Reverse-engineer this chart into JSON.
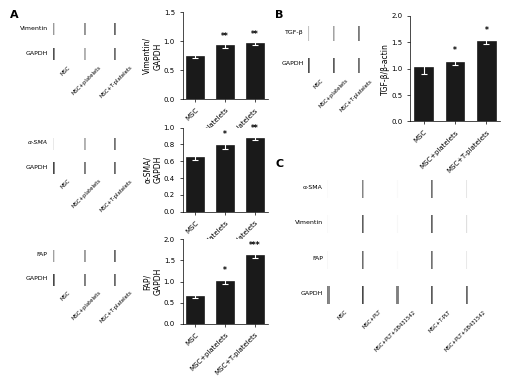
{
  "panel_A_bars": [
    {
      "title": "Vimentin/\nGAPDH",
      "categories": [
        "MSC",
        "MSC+platelets",
        "MSC+T-platelets"
      ],
      "values": [
        0.75,
        0.93,
        0.97
      ],
      "errors": [
        0.04,
        0.04,
        0.03
      ],
      "ylim": [
        0,
        1.5
      ],
      "yticks": [
        0.0,
        0.5,
        1.0,
        1.5
      ],
      "significance": [
        "",
        "**",
        "**"
      ]
    },
    {
      "title": "α-SMA/\nGAPDH",
      "categories": [
        "MSC",
        "MSC+platelets",
        "MSC+T-platelets"
      ],
      "values": [
        0.65,
        0.79,
        0.88
      ],
      "errors": [
        0.03,
        0.04,
        0.03
      ],
      "ylim": [
        0,
        1.0
      ],
      "yticks": [
        0.0,
        0.2,
        0.4,
        0.6,
        0.8,
        1.0
      ],
      "significance": [
        "",
        "*",
        "**"
      ]
    },
    {
      "title": "FAP/\nGAPDH",
      "categories": [
        "MSC",
        "MSC+platelets",
        "MSC+T-platelets"
      ],
      "values": [
        0.65,
        1.02,
        1.62
      ],
      "errors": [
        0.04,
        0.08,
        0.07
      ],
      "ylim": [
        0,
        2.0
      ],
      "yticks": [
        0.0,
        0.5,
        1.0,
        1.5,
        2.0
      ],
      "significance": [
        "",
        "*",
        "***"
      ]
    }
  ],
  "panel_A_blots": [
    {
      "rows": [
        {
          "label": "Vimentin",
          "intensities": [
            0.45,
            0.72,
            0.82
          ],
          "italic": false
        },
        {
          "label": "GAPDH",
          "intensities": [
            0.78,
            0.6,
            0.8
          ],
          "italic": false
        }
      ]
    },
    {
      "rows": [
        {
          "label": "α-SMA",
          "intensities": [
            0.1,
            0.6,
            0.78
          ],
          "italic": true
        },
        {
          "label": "GAPDH",
          "intensities": [
            0.82,
            0.82,
            0.82
          ],
          "italic": false
        }
      ]
    },
    {
      "rows": [
        {
          "label": "FAP",
          "intensities": [
            0.42,
            0.68,
            0.82
          ],
          "italic": false
        },
        {
          "label": "GAPDH",
          "intensities": [
            0.82,
            0.82,
            0.82
          ],
          "italic": false
        }
      ]
    }
  ],
  "blot_A_lanes": [
    "MSC",
    "MSC+platelets",
    "MSC+T-platelets"
  ],
  "panel_B": {
    "title": "TGF-β/β-actin",
    "categories": [
      "MSC",
      "MSC+platelets",
      "MSC+T-platelets"
    ],
    "values": [
      1.02,
      1.13,
      1.52
    ],
    "errors": [
      0.12,
      0.07,
      0.06
    ],
    "ylim": [
      0,
      2.0
    ],
    "yticks": [
      0.0,
      0.5,
      1.0,
      1.5,
      2.0
    ],
    "significance": [
      "",
      "*",
      "*"
    ],
    "blot_rows": [
      {
        "label": "TGF-β",
        "intensities": [
          0.3,
          0.5,
          0.78
        ]
      },
      {
        "label": "GAPDH",
        "intensities": [
          0.82,
          0.82,
          0.82
        ]
      }
    ],
    "blot_lanes": [
      "MSC",
      "MSC+platelets",
      "MSC+T-platelets"
    ]
  },
  "panel_C": {
    "blot_rows": [
      {
        "label": "α-SMA",
        "intensities": [
          0.18,
          0.55,
          0.22,
          0.72,
          0.25
        ]
      },
      {
        "label": "Vimentin",
        "intensities": [
          0.22,
          0.72,
          0.28,
          0.78,
          0.3
        ]
      },
      {
        "label": "FAP",
        "intensities": [
          0.28,
          0.65,
          0.22,
          0.72,
          0.22
        ]
      },
      {
        "label": "GAPDH",
        "intensities": [
          0.82,
          0.82,
          0.82,
          0.82,
          0.82
        ]
      }
    ],
    "blot_lanes": [
      "MSC",
      "MSC+PLT",
      "MSC+PLT+SB431542",
      "MSC+T-PLT",
      "MSC+PLT+SB431542"
    ]
  },
  "bar_color": "#1a1a1a",
  "background_color": "#ffffff",
  "tick_fontsize": 5,
  "label_fontsize": 5.5,
  "sig_fontsize": 5.5
}
